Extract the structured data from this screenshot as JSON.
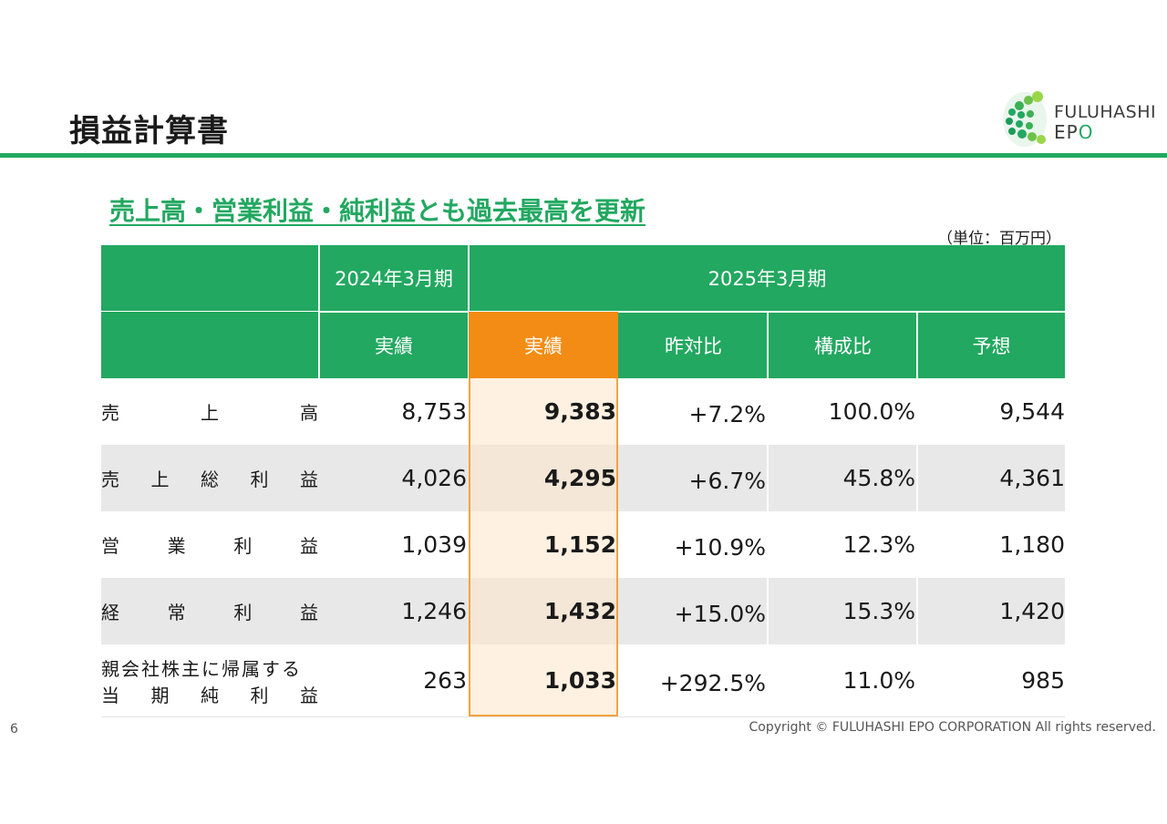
{
  "title": "損益計算書",
  "logo": {
    "line1": "FULUHASHI",
    "line2_prefix": "EP",
    "line2_o": "O"
  },
  "headline": "売上高・営業利益・純利益とも過去最高を更新",
  "unit_note": "（単位：百万円）",
  "table": {
    "period_prev": "2024年3月期",
    "period_curr": "2025年3月期",
    "columns": [
      "実績",
      "実績",
      "昨対比",
      "構成比",
      "予想"
    ],
    "rows": [
      {
        "label_chars": [
          "売",
          "上",
          "高"
        ],
        "values": [
          "8,753",
          "9,383",
          "+7.2%",
          "100.0%",
          "9,544"
        ]
      },
      {
        "label_chars": [
          "売",
          "上",
          "総",
          "利",
          "益"
        ],
        "values": [
          "4,026",
          "4,295",
          "+6.7%",
          "45.8%",
          "4,361"
        ]
      },
      {
        "label_chars": [
          "営",
          "業",
          "利",
          "益"
        ],
        "values": [
          "1,039",
          "1,152",
          "+10.9%",
          "12.3%",
          "1,180"
        ]
      },
      {
        "label_chars": [
          "経",
          "常",
          "利",
          "益"
        ],
        "values": [
          "1,246",
          "1,432",
          "+15.0%",
          "15.3%",
          "1,420"
        ]
      },
      {
        "label_line1": "親会社株主に帰属する",
        "label_chars": [
          "当",
          "期",
          "純",
          "利",
          "益"
        ],
        "values": [
          "263",
          "1,033",
          "+292.5%",
          "11.0%",
          "985"
        ]
      }
    ]
  },
  "footer": {
    "page_number": "6",
    "copyright": "Copyright © FULUHASHI EPO CORPORATION All rights reserved."
  },
  "colors": {
    "brand_green": "#22a860",
    "highlight_orange": "#f38c14"
  }
}
